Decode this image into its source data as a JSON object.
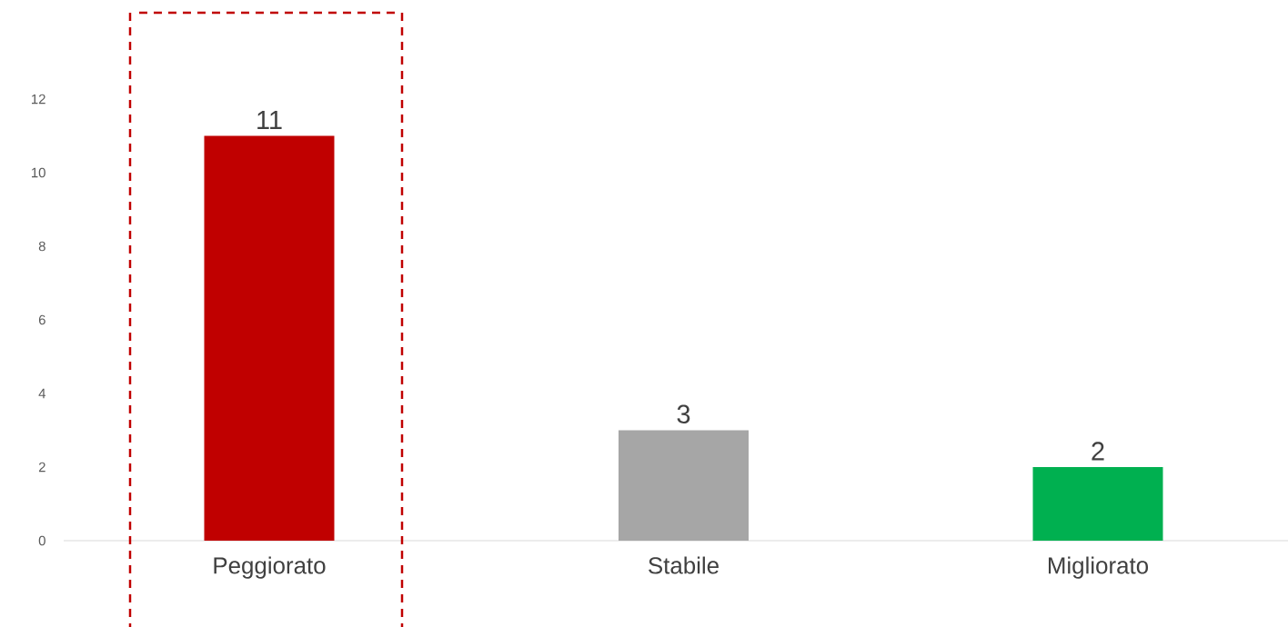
{
  "chart_data": {
    "type": "bar",
    "categories": [
      "Peggiorato",
      "Stabile",
      "Migliorato"
    ],
    "values": [
      11,
      3,
      2
    ],
    "colors": [
      "#c00000",
      "#a6a6a6",
      "#00b050"
    ],
    "ylim": [
      0,
      12
    ],
    "yticks": [
      0,
      2,
      4,
      6,
      8,
      10,
      12
    ],
    "data_labels": true
  }
}
